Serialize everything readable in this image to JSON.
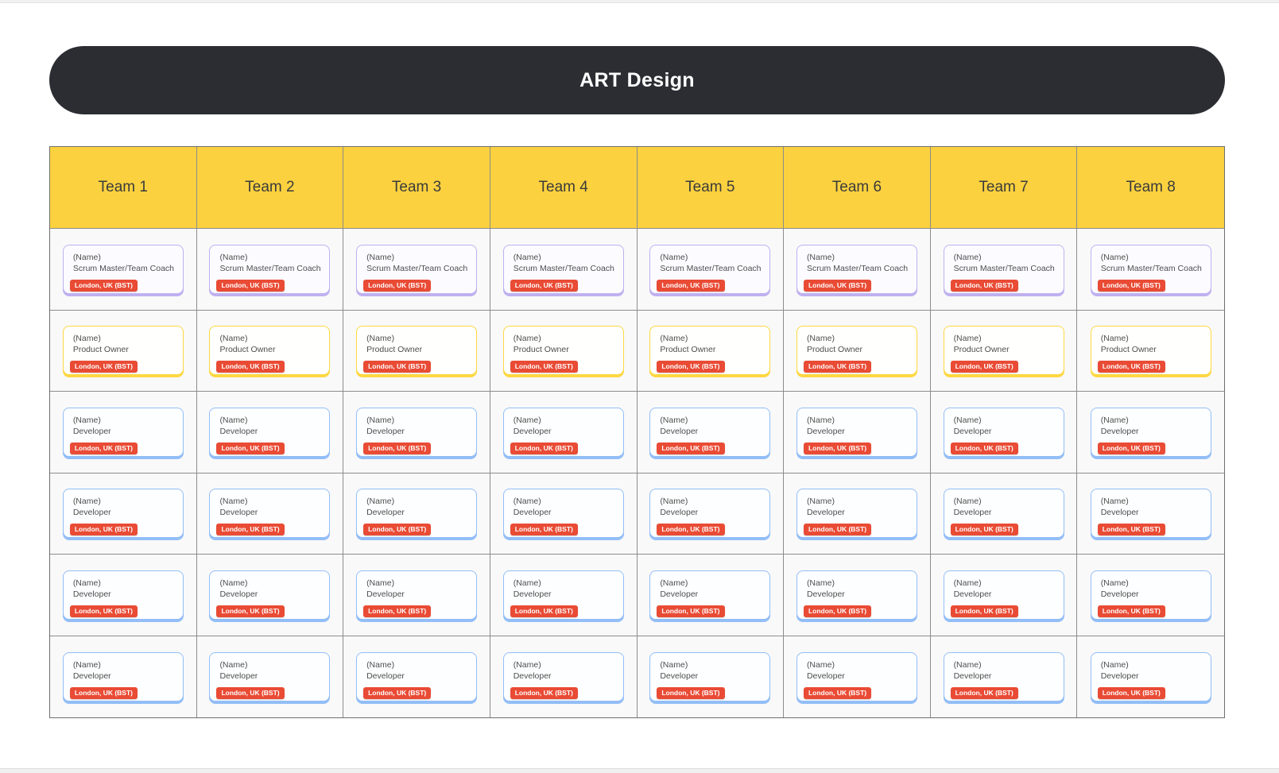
{
  "board": {
    "title": "ART Design"
  },
  "teams": [
    "Team 1",
    "Team 2",
    "Team 3",
    "Team 4",
    "Team 5",
    "Team 6",
    "Team 7",
    "Team 8"
  ],
  "rows": [
    {
      "role": "Scrum Master/Team Coach",
      "type": "scrum_master"
    },
    {
      "role": "Product Owner",
      "type": "product_owner"
    },
    {
      "role": "Developer",
      "type": "developer"
    },
    {
      "role": "Developer",
      "type": "developer"
    },
    {
      "role": "Developer",
      "type": "developer"
    },
    {
      "role": "Developer",
      "type": "developer"
    }
  ],
  "card": {
    "name_placeholder": "(Name)",
    "location_tag": "London, UK (BST)"
  },
  "colors": {
    "title_bar_bg": "#2b2d33",
    "title_text": "#ffffff",
    "team_header_bg": "#fbd13f",
    "team_header_text": "#3b3b3b",
    "grid_line": "#8c8c8c",
    "cell_bg": "#f9f9f9",
    "card_text": "#4e4e4e",
    "badge_bg": "#e94b35",
    "badge_text": "#ffffff",
    "scrum_master_border": "#bfb1f0",
    "product_owner_border": "#fed843",
    "developer_border": "#93bef7"
  }
}
